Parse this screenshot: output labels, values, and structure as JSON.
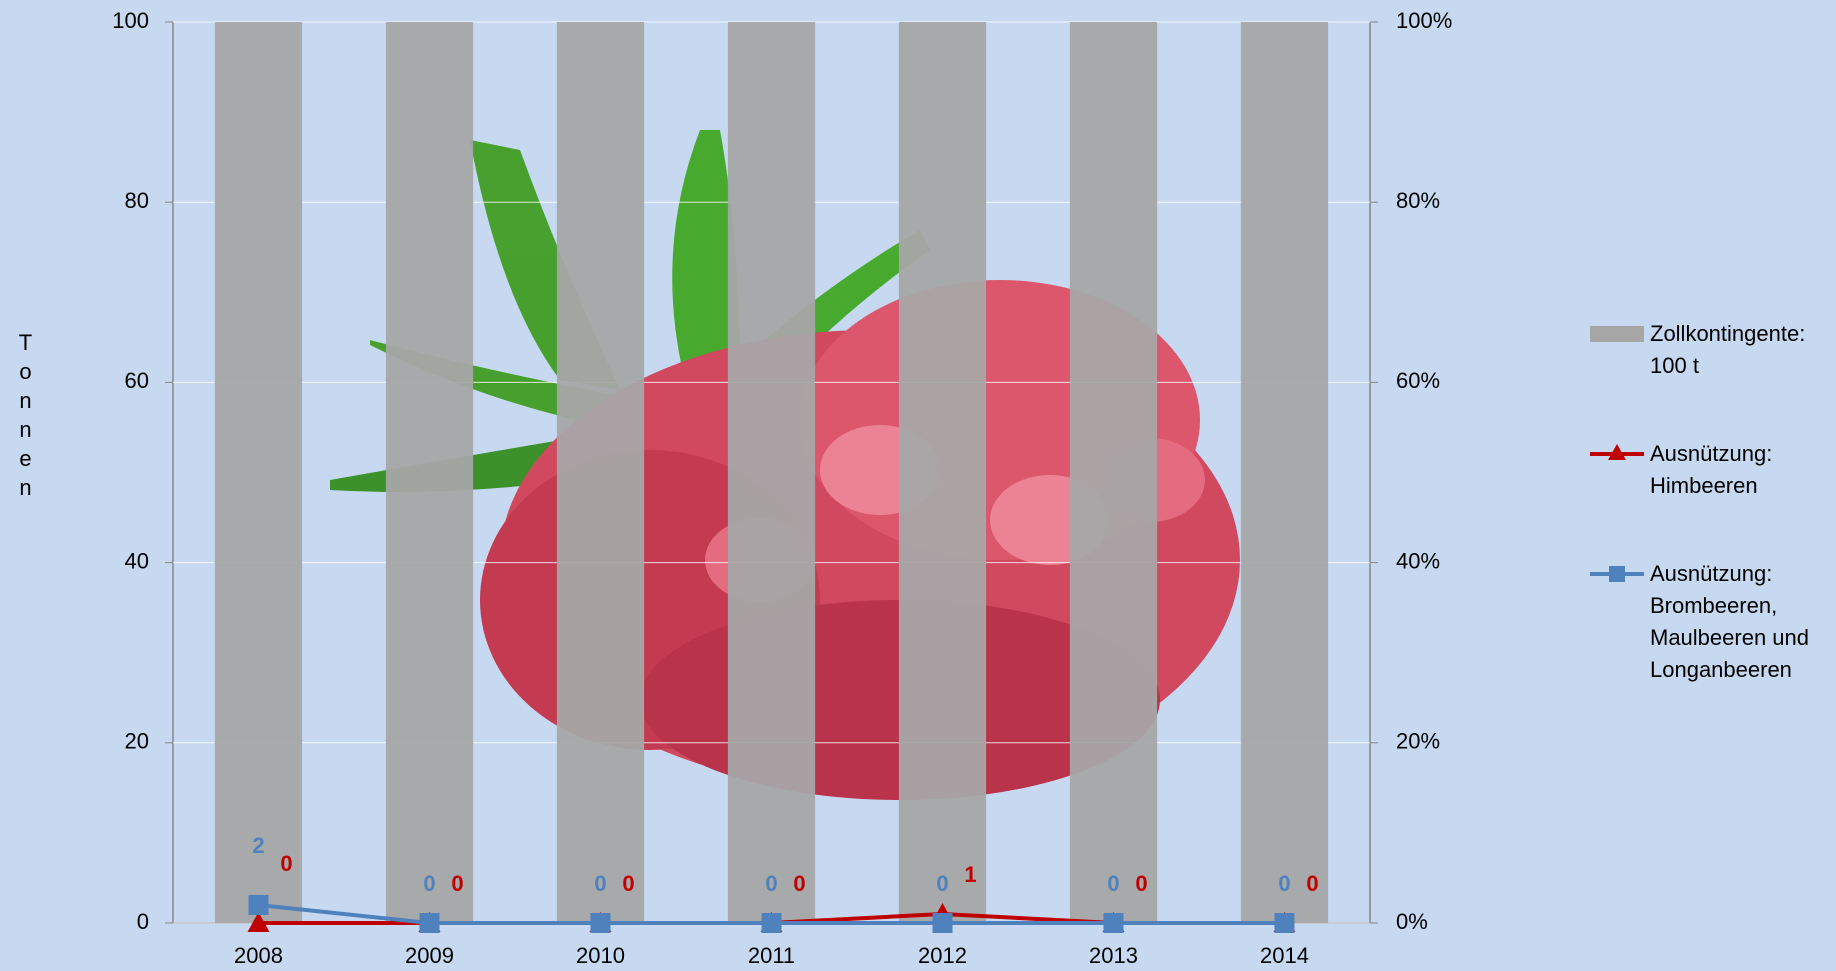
{
  "chart_data": {
    "type": "bar-line",
    "y_axis_label": "Tonnen",
    "categories": [
      "2008",
      "2009",
      "2010",
      "2011",
      "2012",
      "2013",
      "2014"
    ],
    "series": [
      {
        "name": "Zollkontingente: 100 t",
        "type": "bar",
        "color": "#a6a6a6",
        "values": [
          100,
          100,
          100,
          100,
          100,
          100,
          100
        ]
      },
      {
        "name": "Ausnützung: Himbeeren",
        "type": "line",
        "marker": "triangle",
        "axis": "y2",
        "color": "#c00000",
        "values": [
          0,
          0,
          0,
          0,
          1,
          0,
          0
        ]
      },
      {
        "name": "Ausnützung: Brombeeren, Maulbeeren und Longanbeeren",
        "type": "line",
        "marker": "square",
        "axis": "y2",
        "color": "#4f81bd",
        "values": [
          2,
          0,
          0,
          0,
          0,
          0,
          0
        ]
      }
    ],
    "ylim": [
      0,
      100
    ],
    "yticks": [
      0,
      20,
      40,
      60,
      80,
      100
    ],
    "y2lim": [
      0,
      100
    ],
    "y2ticks": [
      {
        "value": 0,
        "label": "0%"
      },
      {
        "value": 20,
        "label": "20%"
      },
      {
        "value": 40,
        "label": "40%"
      },
      {
        "value": 60,
        "label": "60%"
      },
      {
        "value": 80,
        "label": "80%"
      },
      {
        "value": 100,
        "label": "100%"
      }
    ],
    "grid": true,
    "legend": "right"
  }
}
